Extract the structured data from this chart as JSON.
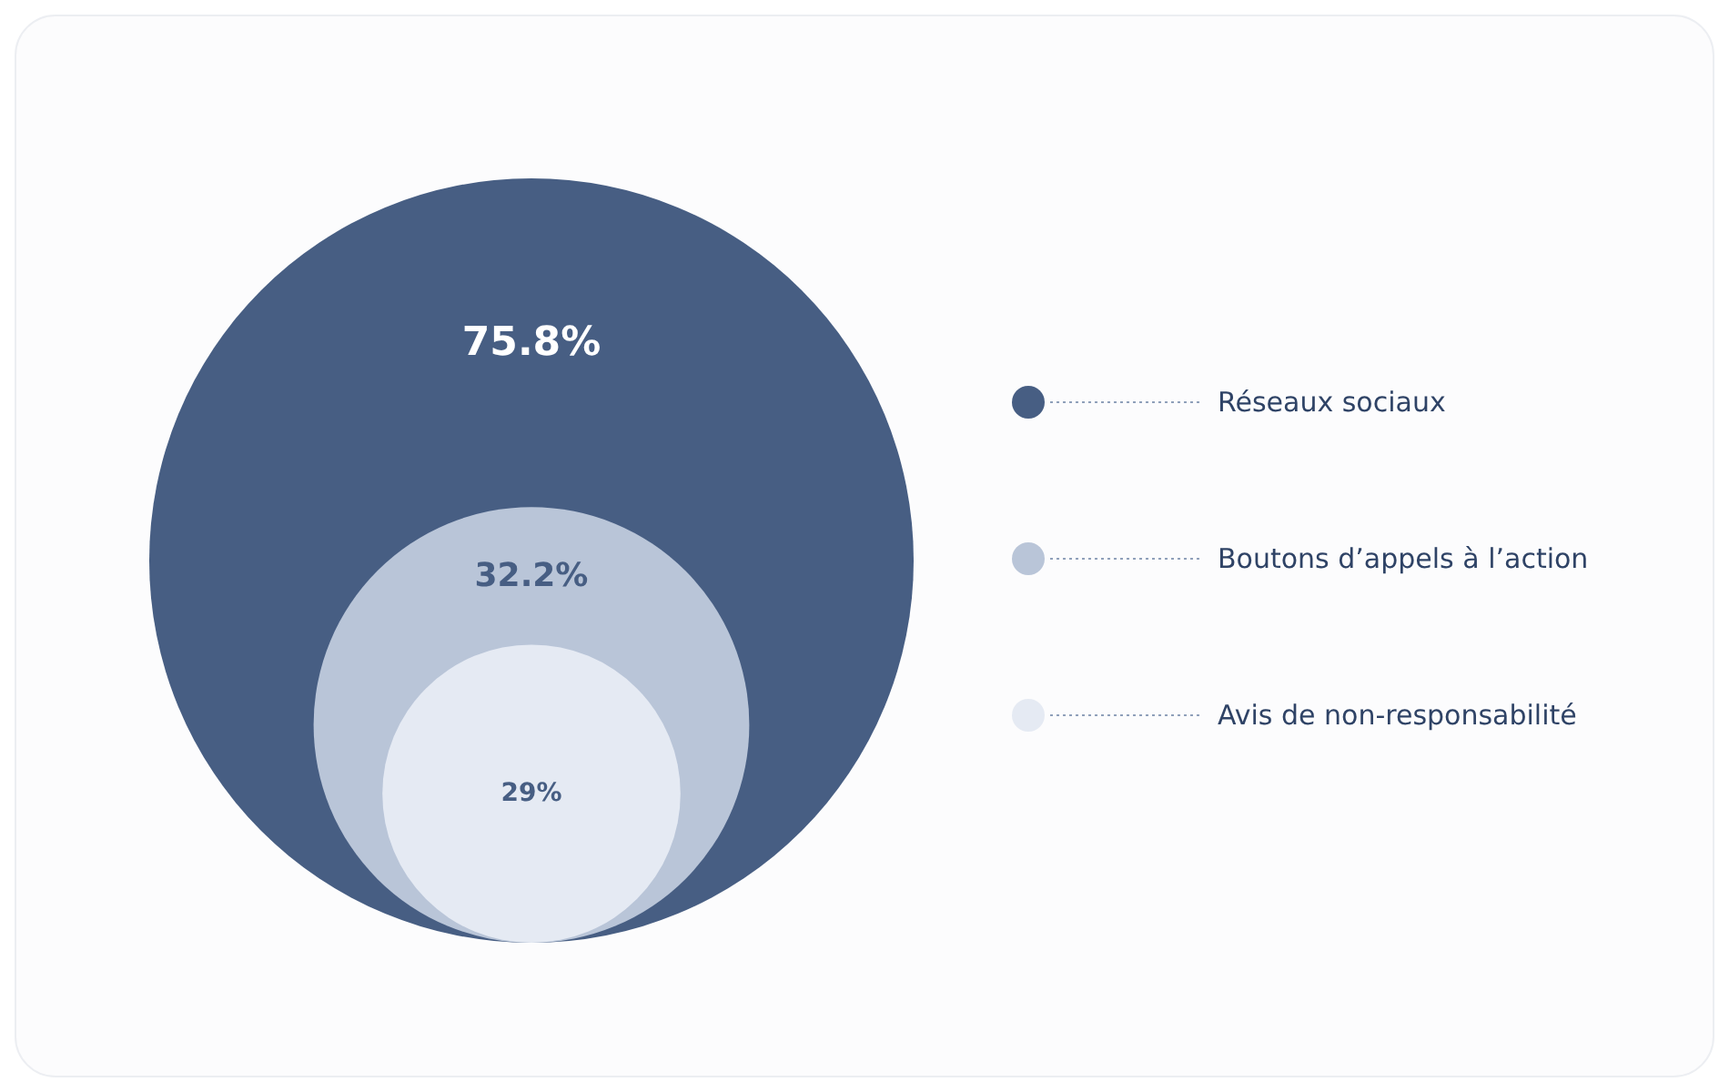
{
  "chart_data": {
    "type": "other",
    "categories": [
      "Réseaux sociaux",
      "Boutons d’appels à l’action",
      "Avis de non-responsabilité"
    ],
    "values": [
      75.8,
      32.2,
      29
    ],
    "value_labels": [
      "75.8%",
      "32.2%",
      "29%"
    ],
    "colors": [
      "#475e83",
      "#b9c5d8",
      "#e5eaf3"
    ]
  }
}
